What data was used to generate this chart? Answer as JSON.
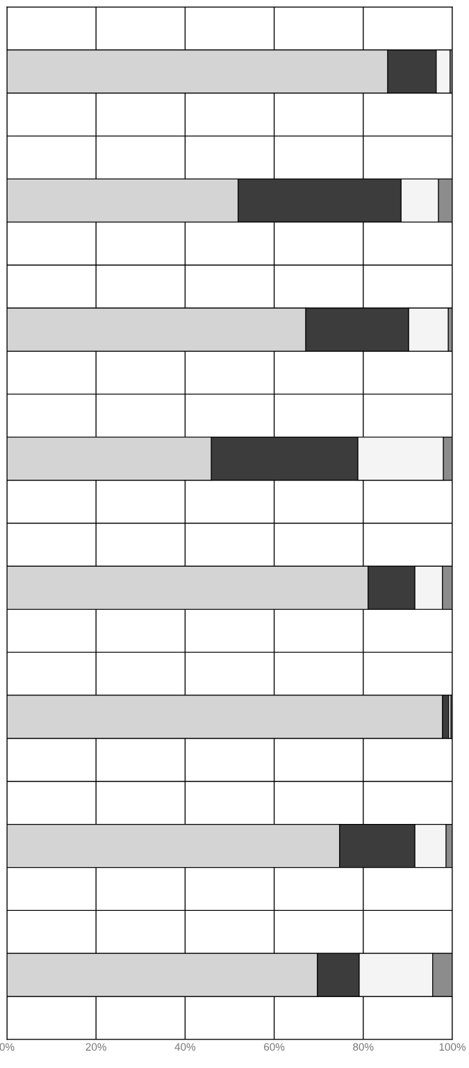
{
  "chart_data": {
    "type": "bar",
    "orientation": "horizontal",
    "stacked": true,
    "categories": [
      null,
      null,
      null,
      null,
      null,
      null,
      null,
      null,
      null,
      null,
      null,
      null,
      null,
      null,
      null,
      null,
      null,
      null,
      null,
      null,
      null,
      null,
      null,
      null
    ],
    "series": [
      {
        "color": "#d4d4d4",
        "values": [
          null,
          85.5,
          null,
          null,
          51.9,
          null,
          null,
          67.1,
          null,
          null,
          45.9,
          null,
          null,
          81.1,
          null,
          null,
          97.8,
          null,
          null,
          74.7,
          null,
          null,
          69.7,
          null
        ]
      },
      {
        "color": "#3c3c3c",
        "values": [
          null,
          10.9,
          null,
          null,
          36.6,
          null,
          null,
          23.1,
          null,
          null,
          32.9,
          null,
          null,
          10.5,
          null,
          null,
          1.4,
          null,
          null,
          16.9,
          null,
          null,
          9.4,
          null
        ]
      },
      {
        "color": "#f4f4f4",
        "values": [
          null,
          3.1,
          null,
          null,
          8.4,
          null,
          null,
          8.9,
          null,
          null,
          19.2,
          null,
          null,
          6.2,
          null,
          null,
          0.5,
          null,
          null,
          7.0,
          null,
          null,
          16.5,
          null
        ]
      },
      {
        "color": "#8c8c8c",
        "values": [
          null,
          0.5,
          null,
          null,
          3.1,
          null,
          null,
          0.9,
          null,
          null,
          2.0,
          null,
          null,
          2.2,
          null,
          null,
          0.3,
          null,
          null,
          1.4,
          null,
          null,
          4.4,
          null
        ]
      }
    ],
    "xlim": [
      0,
      100
    ],
    "xticks": [
      {
        "value": 0,
        "label": "0%"
      },
      {
        "value": 20,
        "label": "20%"
      },
      {
        "value": 40,
        "label": "40%"
      },
      {
        "value": 60,
        "label": "60%"
      },
      {
        "value": 80,
        "label": "80%"
      },
      {
        "value": 100,
        "label": "100%"
      }
    ],
    "tick_labels": "x",
    "grid": true
  }
}
